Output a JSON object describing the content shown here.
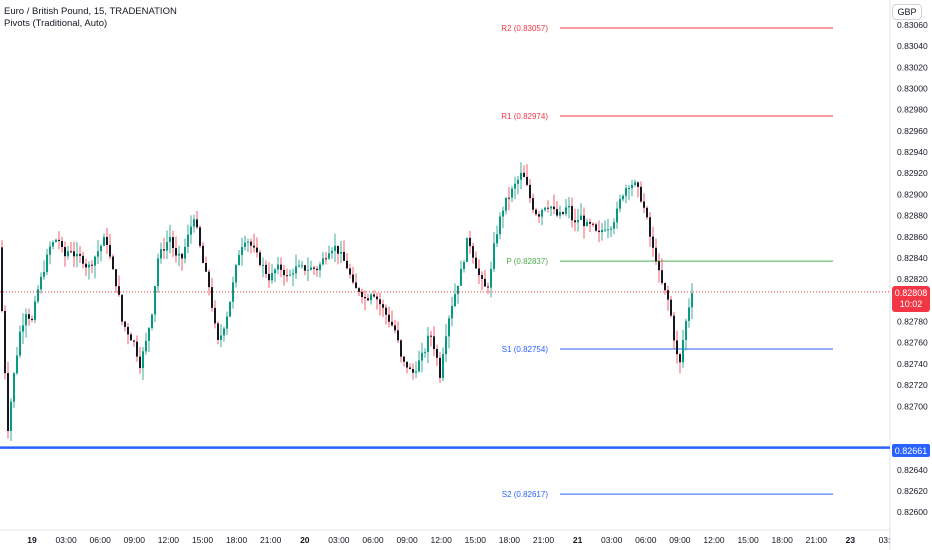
{
  "legend": {
    "symbol": "Euro / British Pound, 15, TRADENATION",
    "indicator": "Pivots (Traditional, Auto)"
  },
  "currency_button": "GBP",
  "last_price": {
    "value": "0.82808",
    "countdown": "10:02"
  },
  "horizontal_line": {
    "value": "0.82661",
    "color": "#2962ff"
  },
  "colors": {
    "up": "#089981",
    "down": "#131722",
    "wick_up": "#089981",
    "wick_down": "#f23645",
    "resistance": "#f23645",
    "pivot": "#4caf50",
    "support": "#2962ff"
  },
  "chart_data": {
    "type": "candlestick",
    "title": "",
    "ylim": [
      0.8259,
      0.8307
    ],
    "y_ticks": [
      "0.83060",
      "0.83040",
      "0.83020",
      "0.83000",
      "0.82980",
      "0.82960",
      "0.82940",
      "0.82920",
      "0.82900",
      "0.82880",
      "0.82860",
      "0.82840",
      "0.82820",
      "0.82780",
      "0.82760",
      "0.82740",
      "0.82720",
      "0.82700",
      "0.82640",
      "0.82620",
      "0.82600"
    ],
    "x_ticks": [
      "19",
      "03:00",
      "06:00",
      "09:00",
      "12:00",
      "15:00",
      "18:00",
      "21:00",
      "20",
      "03:00",
      "06:00",
      "09:00",
      "12:00",
      "15:00",
      "18:00",
      "21:00",
      "21",
      "03:00",
      "06:00",
      "09:00",
      "12:00",
      "15:00",
      "18:00",
      "21:00",
      "23",
      "03:"
    ],
    "pivots": [
      {
        "label": "R2 (0.83057)",
        "value": 0.83057,
        "kind": "resistance"
      },
      {
        "label": "R1 (0.82974)",
        "value": 0.82974,
        "kind": "resistance"
      },
      {
        "label": "P (0.82837)",
        "value": 0.82837,
        "kind": "pivot"
      },
      {
        "label": "S1 (0.82754)",
        "value": 0.82754,
        "kind": "support"
      },
      {
        "label": "S2 (0.82617)",
        "value": 0.82617,
        "kind": "support"
      }
    ],
    "close_path": [
      [
        0,
        0.8285
      ],
      [
        3,
        0.8276
      ],
      [
        6,
        0.8272
      ],
      [
        8,
        0.8268
      ],
      [
        14,
        0.8273
      ],
      [
        20,
        0.8277
      ],
      [
        26,
        0.8279
      ],
      [
        32,
        0.8278
      ],
      [
        38,
        0.8281
      ],
      [
        44,
        0.8283
      ],
      [
        50,
        0.8285
      ],
      [
        58,
        0.8286
      ],
      [
        64,
        0.8284
      ],
      [
        70,
        0.8285
      ],
      [
        76,
        0.8284
      ],
      [
        82,
        0.8284
      ],
      [
        88,
        0.8283
      ],
      [
        94,
        0.8284
      ],
      [
        100,
        0.8285
      ],
      [
        106,
        0.8286
      ],
      [
        112,
        0.8283
      ],
      [
        118,
        0.8281
      ],
      [
        122,
        0.8278
      ],
      [
        128,
        0.8277
      ],
      [
        134,
        0.8276
      ],
      [
        140,
        0.8274
      ],
      [
        146,
        0.8276
      ],
      [
        152,
        0.8279
      ],
      [
        158,
        0.8284
      ],
      [
        164,
        0.8285
      ],
      [
        170,
        0.8286
      ],
      [
        176,
        0.8284
      ],
      [
        182,
        0.8284
      ],
      [
        188,
        0.8286
      ],
      [
        194,
        0.8288
      ],
      [
        198,
        0.8286
      ],
      [
        204,
        0.8283
      ],
      [
        210,
        0.8281
      ],
      [
        214,
        0.8278
      ],
      [
        218,
        0.8276
      ],
      [
        222,
        0.8277
      ],
      [
        228,
        0.8279
      ],
      [
        234,
        0.8282
      ],
      [
        240,
        0.8285
      ],
      [
        246,
        0.8286
      ],
      [
        252,
        0.8285
      ],
      [
        258,
        0.8284
      ],
      [
        264,
        0.8283
      ],
      [
        270,
        0.8282
      ],
      [
        276,
        0.8283
      ],
      [
        282,
        0.8283
      ],
      [
        288,
        0.8282
      ],
      [
        294,
        0.8283
      ],
      [
        300,
        0.8283
      ],
      [
        306,
        0.8283
      ],
      [
        312,
        0.8283
      ],
      [
        318,
        0.8283
      ],
      [
        324,
        0.8284
      ],
      [
        330,
        0.8285
      ],
      [
        336,
        0.8285
      ],
      [
        342,
        0.8284
      ],
      [
        348,
        0.8283
      ],
      [
        354,
        0.8281
      ],
      [
        360,
        0.8281
      ],
      [
        366,
        0.828
      ],
      [
        372,
        0.8281
      ],
      [
        378,
        0.828
      ],
      [
        384,
        0.8279
      ],
      [
        390,
        0.8278
      ],
      [
        396,
        0.8277
      ],
      [
        402,
        0.8274
      ],
      [
        406,
        0.8274
      ],
      [
        412,
        0.8273
      ],
      [
        418,
        0.8274
      ],
      [
        424,
        0.8275
      ],
      [
        430,
        0.8277
      ],
      [
        436,
        0.8275
      ],
      [
        440,
        0.8273
      ],
      [
        444,
        0.8276
      ],
      [
        450,
        0.8279
      ],
      [
        456,
        0.8281
      ],
      [
        462,
        0.8283
      ],
      [
        468,
        0.8286
      ],
      [
        474,
        0.8284
      ],
      [
        480,
        0.8282
      ],
      [
        486,
        0.8281
      ],
      [
        490,
        0.8282
      ],
      [
        494,
        0.8285
      ],
      [
        498,
        0.8287
      ],
      [
        504,
        0.8289
      ],
      [
        510,
        0.829
      ],
      [
        516,
        0.8291
      ],
      [
        522,
        0.8292
      ],
      [
        526,
        0.8291
      ],
      [
        532,
        0.8289
      ],
      [
        538,
        0.8288
      ],
      [
        544,
        0.8289
      ],
      [
        550,
        0.8289
      ],
      [
        556,
        0.8288
      ],
      [
        562,
        0.8288
      ],
      [
        568,
        0.8289
      ],
      [
        574,
        0.8287
      ],
      [
        580,
        0.8288
      ],
      [
        586,
        0.8287
      ],
      [
        592,
        0.8287
      ],
      [
        598,
        0.8286
      ],
      [
        604,
        0.8287
      ],
      [
        610,
        0.8287
      ],
      [
        616,
        0.8288
      ],
      [
        622,
        0.829
      ],
      [
        628,
        0.8291
      ],
      [
        634,
        0.8291
      ],
      [
        640,
        0.829
      ],
      [
        646,
        0.8288
      ],
      [
        652,
        0.8285
      ],
      [
        656,
        0.8284
      ],
      [
        660,
        0.8282
      ],
      [
        664,
        0.8281
      ],
      [
        668,
        0.828
      ],
      [
        672,
        0.8278
      ],
      [
        676,
        0.8275
      ],
      [
        680,
        0.8274
      ],
      [
        684,
        0.8277
      ],
      [
        688,
        0.8279
      ],
      [
        692,
        0.8281
      ]
    ]
  }
}
